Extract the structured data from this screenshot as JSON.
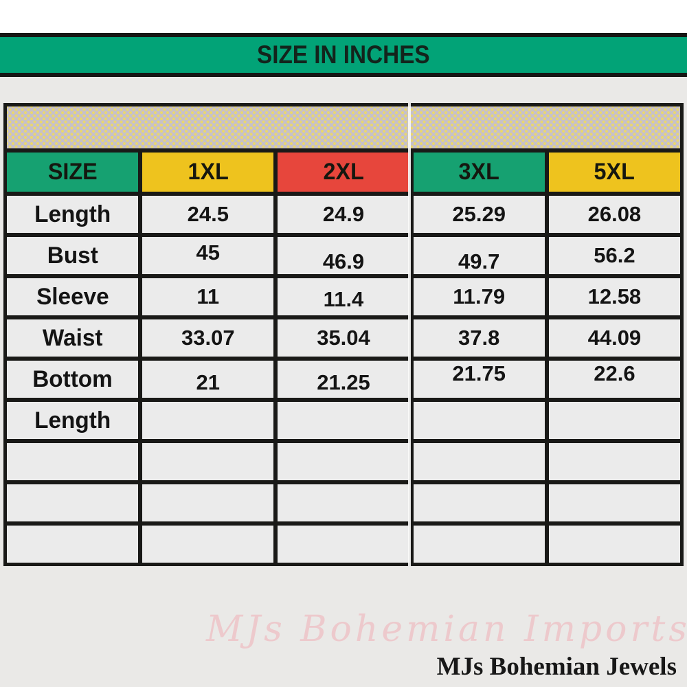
{
  "title_band": {
    "label": "SIZE IN INCHES",
    "bg_color": "#02a377"
  },
  "table": {
    "columns": [
      {
        "label": "SIZE",
        "bg": "#16a171"
      },
      {
        "label": "1XL",
        "bg": "#eec31e"
      },
      {
        "label": "2XL",
        "bg": "#e7463c"
      },
      {
        "label": "3XL",
        "bg": "#16a171"
      },
      {
        "label": "5XL",
        "bg": "#eec31e"
      }
    ],
    "rows": [
      {
        "label": "Length",
        "values": [
          "24.5",
          "24.9",
          "25.29",
          "26.08"
        ]
      },
      {
        "label": "Bust",
        "values": [
          "45",
          "46.9",
          "49.7",
          "56.2"
        ]
      },
      {
        "label": "Sleeve",
        "values": [
          "11",
          "11.4",
          "11.79",
          "12.58"
        ]
      },
      {
        "label": "Waist",
        "values": [
          "33.07",
          "35.04",
          "37.8",
          "44.09"
        ]
      },
      {
        "label": "Bottom",
        "values": [
          "21",
          "21.25",
          "21.75",
          "22.6"
        ]
      },
      {
        "label": "Length",
        "values": [
          "",
          "",
          "",
          ""
        ]
      },
      {
        "label": "",
        "values": [
          "",
          "",
          "",
          ""
        ]
      },
      {
        "label": "",
        "values": [
          "",
          "",
          "",
          ""
        ]
      },
      {
        "label": "",
        "values": [
          "",
          "",
          "",
          ""
        ]
      }
    ],
    "dotted_band": {
      "bg": "#c6c0ca",
      "dot_color": "#e9d76f"
    },
    "cell_bg": "#ebebeb",
    "border_color": "#191917"
  },
  "watermark": {
    "text": "MJs Bohemian Imports",
    "color": "#edc9cc"
  },
  "brand": {
    "text": "MJs Bohemian Jewels",
    "color": "#181818"
  },
  "chart_data": {
    "type": "table",
    "title": "SIZE IN INCHES",
    "columns": [
      "SIZE",
      "1XL",
      "2XL",
      "3XL",
      "5XL"
    ],
    "rows": [
      [
        "Length",
        "24.5",
        "24.9",
        "25.29",
        "26.08"
      ],
      [
        "Bust",
        "45",
        "46.9",
        "49.7",
        "56.2"
      ],
      [
        "Sleeve",
        "11",
        "11.4",
        "11.79",
        "12.58"
      ],
      [
        "Waist",
        "33.07",
        "35.04",
        "37.8",
        "44.09"
      ],
      [
        "Bottom Length",
        "21",
        "21.25",
        "21.75",
        "22.6"
      ]
    ],
    "units": "inches",
    "header_colors": [
      "#16a171",
      "#eec31e",
      "#e7463c",
      "#16a171",
      "#eec31e"
    ]
  }
}
